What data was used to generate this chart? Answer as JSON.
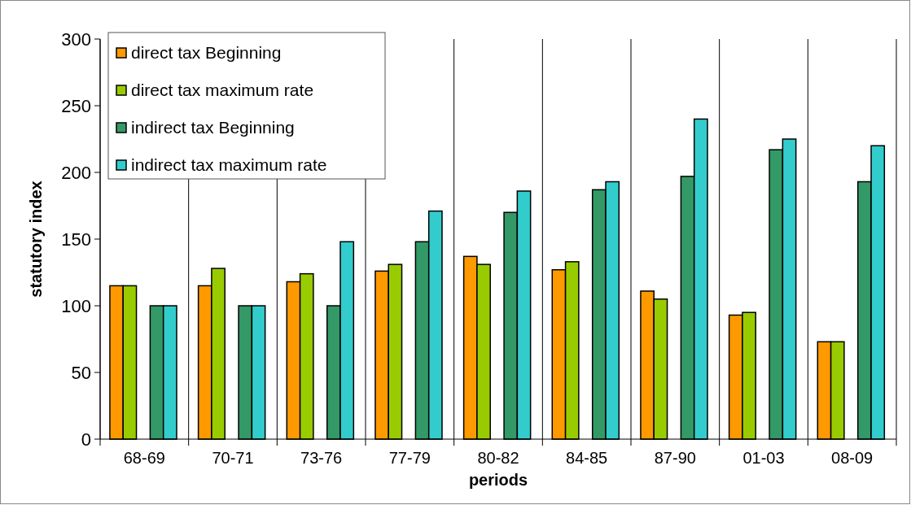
{
  "chart_data": {
    "type": "bar",
    "xlabel": "periods",
    "ylabel": "statutory index",
    "categories": [
      "68-69",
      "70-71",
      "73-76",
      "77-79",
      "80-82",
      "84-85",
      "87-90",
      "01-03",
      "08-09"
    ],
    "series": [
      {
        "name": "direct tax Beginning",
        "color": "#ff9900",
        "values": [
          115,
          115,
          118,
          126,
          137,
          127,
          111,
          93,
          73
        ]
      },
      {
        "name": "direct tax maximum rate",
        "color": "#99cc00",
        "values": [
          115,
          128,
          124,
          131,
          131,
          133,
          105,
          95,
          73
        ]
      },
      {
        "name": "indirect tax Beginning",
        "color": "#339966",
        "values": [
          100,
          100,
          100,
          148,
          170,
          187,
          197,
          217,
          193
        ]
      },
      {
        "name": "indirect tax maximum rate",
        "color": "#33cccc",
        "values": [
          100,
          100,
          148,
          171,
          186,
          193,
          240,
          225,
          220
        ]
      }
    ],
    "ylim": [
      0,
      300
    ],
    "yticks": [
      0,
      50,
      100,
      150,
      200,
      250,
      300
    ],
    "grid": "x",
    "legend": "top left"
  }
}
